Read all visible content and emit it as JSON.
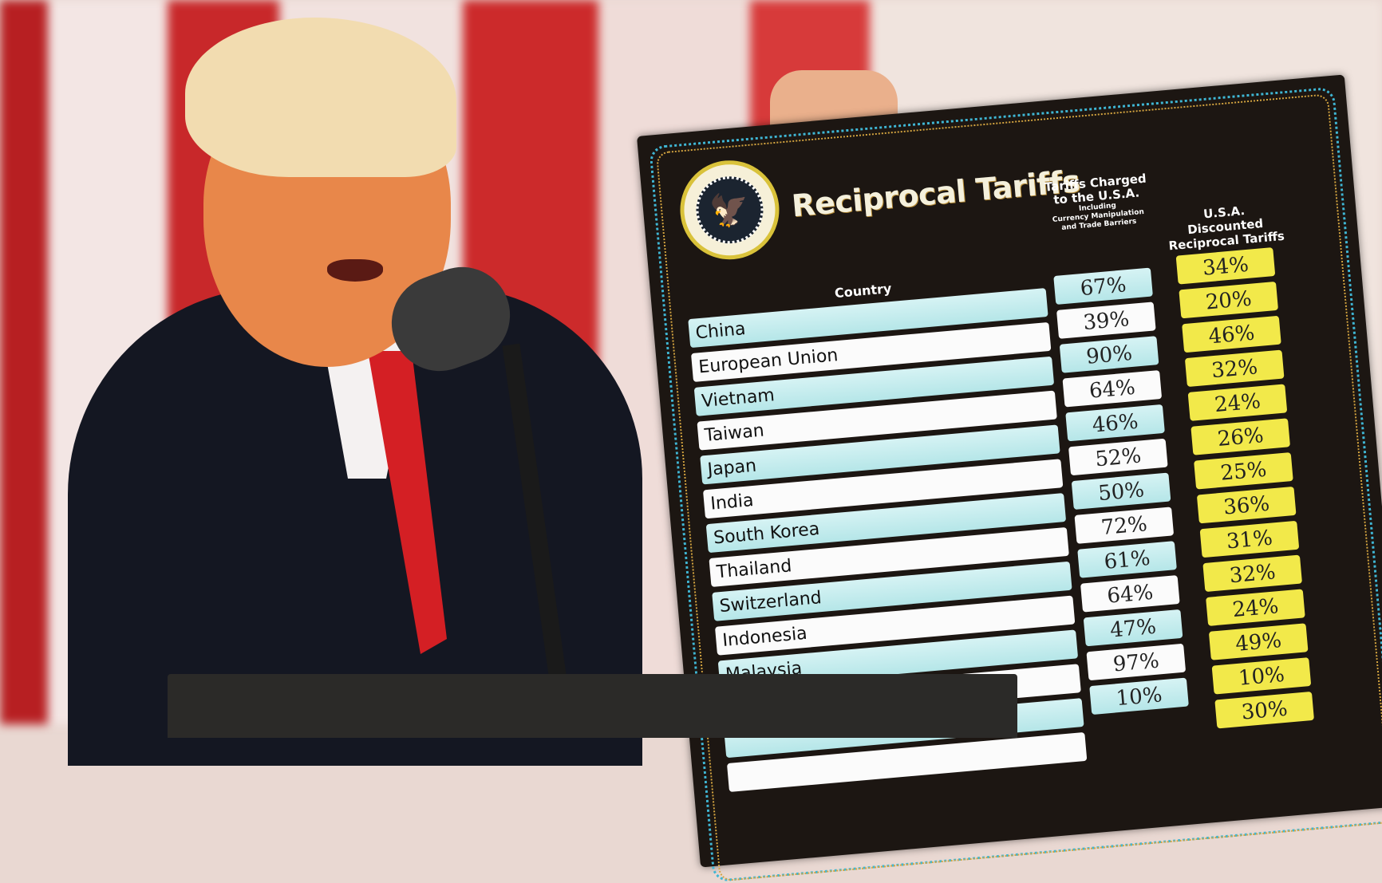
{
  "board": {
    "title": "Reciprocal Tariffs",
    "seal": "presidential-seal",
    "headers": {
      "country": "Country",
      "charged_line1": "Tariffs Charged",
      "charged_line2": "to the U.S.A.",
      "charged_small1": "Including",
      "charged_small2": "Currency Manipulation",
      "charged_small3": "and Trade Barriers",
      "discounted_line1": "U.S.A. Discounted",
      "discounted_line2": "Reciprocal Tariffs"
    },
    "rows": [
      {
        "country": "China",
        "charged": "67%",
        "reciprocal": "34%"
      },
      {
        "country": "European Union",
        "charged": "39%",
        "reciprocal": "20%"
      },
      {
        "country": "Vietnam",
        "charged": "90%",
        "reciprocal": "46%"
      },
      {
        "country": "Taiwan",
        "charged": "64%",
        "reciprocal": "32%"
      },
      {
        "country": "Japan",
        "charged": "46%",
        "reciprocal": "24%"
      },
      {
        "country": "India",
        "charged": "52%",
        "reciprocal": "26%"
      },
      {
        "country": "South Korea",
        "charged": "50%",
        "reciprocal": "25%"
      },
      {
        "country": "Thailand",
        "charged": "72%",
        "reciprocal": "36%"
      },
      {
        "country": "Switzerland",
        "charged": "61%",
        "reciprocal": "31%"
      },
      {
        "country": "Indonesia",
        "charged": "64%",
        "reciprocal": "32%"
      },
      {
        "country": "Malaysia",
        "charged": "47%",
        "reciprocal": "24%"
      },
      {
        "country": "",
        "charged": "97%",
        "reciprocal": "49%"
      },
      {
        "country": "",
        "charged": "10%",
        "reciprocal": "10%"
      },
      {
        "country": "",
        "charged": "",
        "reciprocal": "30%"
      }
    ]
  },
  "colors": {
    "board": "#1c1612",
    "cyan_row": "#c4ecee",
    "yellow_box": "#f2e94a",
    "flag_red": "#c8282a",
    "suit": "#141722",
    "tie": "#d41f24"
  }
}
